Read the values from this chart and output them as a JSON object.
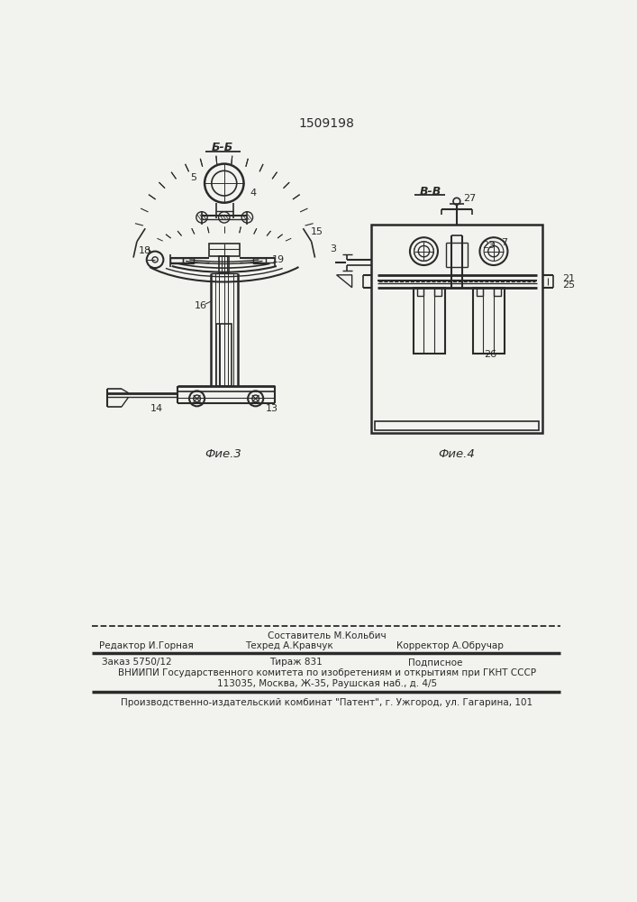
{
  "patent_number": "1509198",
  "bg_color": "#f2f2ee",
  "line_color": "#2a2a2a",
  "fig3_label": "Фие.3",
  "fig4_label": "Фие.4",
  "section_bb": "Б-Б",
  "section_vv": "В-В",
  "footer_line1_center": "Составитель М.Кольбич",
  "footer_line2_left": "Редактор И.Горная",
  "footer_line2_center": "Техред А.Кравчук",
  "footer_line2_right": "Корректор А.Обручар",
  "footer_line3_left": "Заказ 5750/12",
  "footer_line3_center": "Тираж 831",
  "footer_line3_right": "Подписное",
  "footer_line4": "ВНИИПИ Государственного комитета по изобретениям и открытиям при ГКНТ СССР",
  "footer_line5": "113035, Москва, Ж-35, Раушская наб., д. 4/5",
  "footer_line6": "Производственно-издательский комбинат \"Патент\", г. Ужгород, ул. Гагарина, 101"
}
